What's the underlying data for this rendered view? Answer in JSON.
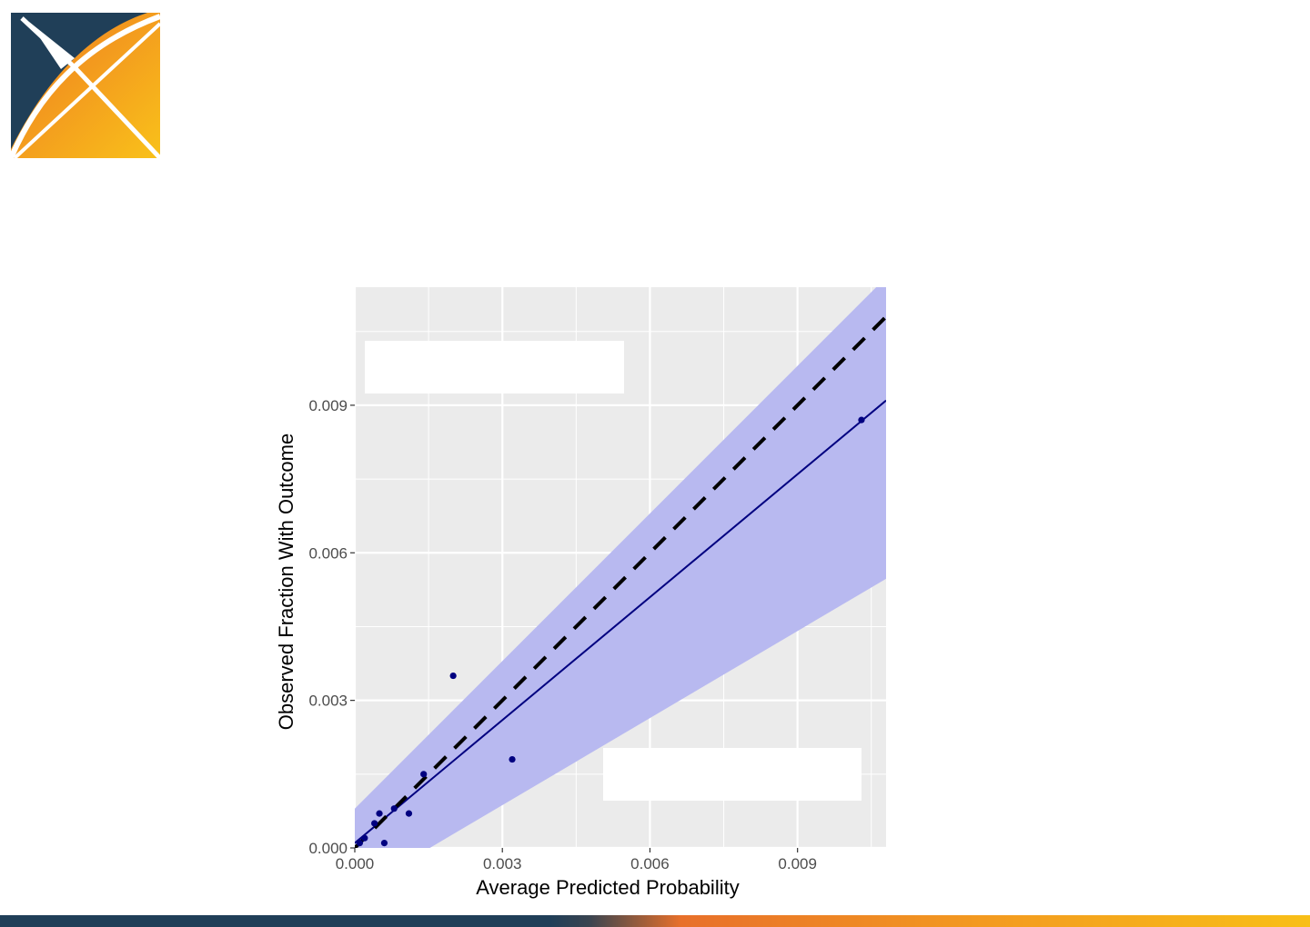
{
  "logo": {
    "name": "OHDSI logo",
    "colors": {
      "navy": "#203f58",
      "orange": "#f08a24",
      "gold": "#f9c11a"
    }
  },
  "chart_data": {
    "type": "scatter",
    "xlabel": "Average Predicted Probability",
    "ylabel": "Observed Fraction With Outcome",
    "xlim": [
      0.0,
      0.0108
    ],
    "ylim": [
      0.0,
      0.0114
    ],
    "x_ticks": [
      0.0,
      0.003,
      0.006,
      0.009
    ],
    "y_ticks": [
      0.0,
      0.003,
      0.006,
      0.009
    ],
    "x_tick_labels": [
      "0.000",
      "0.003",
      "0.006",
      "0.009"
    ],
    "y_tick_labels": [
      "0.000",
      "0.003",
      "0.006",
      "0.009"
    ],
    "points": [
      {
        "x": 0.0001,
        "y": 0.0001
      },
      {
        "x": 0.0002,
        "y": 0.0002
      },
      {
        "x": 0.0004,
        "y": 0.0005
      },
      {
        "x": 0.0005,
        "y": 0.0007
      },
      {
        "x": 0.0006,
        "y": 0.0001
      },
      {
        "x": 0.0008,
        "y": 0.0008
      },
      {
        "x": 0.0011,
        "y": 0.0007
      },
      {
        "x": 0.0014,
        "y": 0.0015
      },
      {
        "x": 0.002,
        "y": 0.0035
      },
      {
        "x": 0.0032,
        "y": 0.0018
      },
      {
        "x": 0.0103,
        "y": 0.0087
      }
    ],
    "reference_line": {
      "slope": 1,
      "intercept": 0,
      "style": "dashed"
    },
    "fit_line": {
      "slope": 0.833,
      "intercept": 0.0001
    },
    "confidence_band": {
      "lower": {
        "slope": 0.59,
        "intercept": -0.0009
      },
      "upper": {
        "slope": 1.0,
        "intercept": 0.0008
      }
    },
    "colors": {
      "panel": "#ebebeb",
      "grid": "#ffffff",
      "band": "#b8b9f0",
      "fit": "#000080",
      "points": "#000080",
      "reference": "#000000"
    }
  }
}
